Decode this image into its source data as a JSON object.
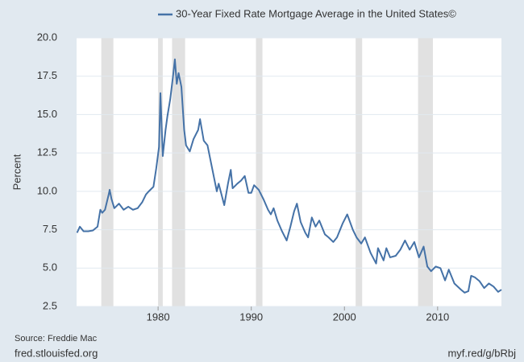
{
  "chart_data": {
    "type": "line",
    "title": "30-Year Fixed Rate Mortgage Average in the United States©",
    "y_label": "Percent",
    "source": "Source: Freddie Mac",
    "site": "fred.stlouisfed.org",
    "short_url": "myf.red/g/bRbj",
    "xlim": [
      1971.25,
      2016.85
    ],
    "xticks": [
      1980,
      1990,
      2000,
      2010
    ],
    "ylim": [
      2.5,
      20
    ],
    "yticks": [
      2.5,
      {
        "value": 5,
        "label": "5.0"
      },
      7.5,
      {
        "value": 10,
        "label": "10.0"
      },
      12.5,
      {
        "value": 15,
        "label": "15.0"
      },
      17.5,
      {
        "value": 20,
        "label": "20.0"
      }
    ],
    "grid": true,
    "recession_color": "#e1e1e1",
    "recessions": [
      [
        1973.9,
        1975.2
      ],
      [
        1980.0,
        1980.5
      ],
      [
        1981.5,
        1982.9
      ],
      [
        1990.5,
        1991.2
      ],
      [
        2001.2,
        2001.9
      ],
      [
        2007.9,
        2009.5
      ]
    ],
    "x": [
      1971.3,
      1971.6,
      1972.0,
      1972.5,
      1973.0,
      1973.5,
      1973.8,
      1974.0,
      1974.3,
      1974.7,
      1974.8,
      1975.0,
      1975.3,
      1975.8,
      1976.3,
      1976.8,
      1977.3,
      1977.8,
      1978.3,
      1978.7,
      1979.0,
      1979.5,
      1979.8,
      1980.1,
      1980.25,
      1980.5,
      1980.8,
      1981.0,
      1981.3,
      1981.6,
      1981.8,
      1982.0,
      1982.2,
      1982.5,
      1982.8,
      1983.0,
      1983.4,
      1983.8,
      1984.3,
      1984.5,
      1984.9,
      1985.3,
      1985.6,
      1986.0,
      1986.3,
      1986.5,
      1986.8,
      1987.1,
      1987.5,
      1987.8,
      1988.0,
      1988.5,
      1988.9,
      1989.3,
      1989.7,
      1990.0,
      1990.3,
      1990.8,
      1991.3,
      1991.8,
      1992.1,
      1992.4,
      1992.8,
      1993.3,
      1993.8,
      1994.2,
      1994.6,
      1994.9,
      1995.3,
      1995.8,
      1996.1,
      1996.5,
      1996.9,
      1997.3,
      1997.9,
      1998.3,
      1998.8,
      1999.2,
      1999.8,
      2000.3,
      2000.9,
      2001.3,
      2001.8,
      2002.2,
      2002.8,
      2003.4,
      2003.6,
      2004.2,
      2004.5,
      2004.9,
      2005.5,
      2006.0,
      2006.5,
      2007.0,
      2007.5,
      2008.0,
      2008.5,
      2008.9,
      2009.3,
      2009.8,
      2010.3,
      2010.8,
      2011.2,
      2011.8,
      2012.5,
      2012.9,
      2013.3,
      2013.6,
      2014.0,
      2014.5,
      2015.0,
      2015.5,
      2016.0,
      2016.5,
      2016.85
    ],
    "series": [
      {
        "name": "30-Year Fixed Rate Mortgage Average in the United States©",
        "color": "#4572a7",
        "values": [
          7.3,
          7.7,
          7.4,
          7.4,
          7.45,
          7.7,
          8.8,
          8.6,
          8.8,
          9.8,
          10.1,
          9.5,
          8.9,
          9.2,
          8.8,
          9.0,
          8.8,
          8.9,
          9.3,
          9.8,
          10.0,
          10.3,
          11.5,
          12.9,
          16.4,
          12.3,
          14.0,
          14.9,
          16.0,
          17.5,
          18.6,
          17.0,
          17.7,
          16.8,
          14.0,
          13.0,
          12.6,
          13.4,
          14.0,
          14.7,
          13.3,
          13.0,
          12.1,
          10.9,
          10.0,
          10.5,
          9.8,
          9.1,
          10.5,
          11.4,
          10.2,
          10.5,
          10.7,
          11.0,
          9.9,
          9.9,
          10.4,
          10.1,
          9.5,
          8.8,
          8.5,
          8.9,
          8.1,
          7.4,
          6.8,
          7.7,
          8.7,
          9.2,
          8.0,
          7.3,
          7.0,
          8.3,
          7.7,
          8.1,
          7.2,
          7.0,
          6.7,
          7.0,
          7.9,
          8.5,
          7.5,
          7.0,
          6.6,
          7.0,
          6.0,
          5.3,
          6.3,
          5.5,
          6.3,
          5.7,
          5.8,
          6.2,
          6.8,
          6.2,
          6.7,
          5.7,
          6.4,
          5.1,
          4.8,
          5.1,
          5.0,
          4.2,
          4.9,
          4.0,
          3.6,
          3.4,
          3.5,
          4.5,
          4.4,
          4.15,
          3.7,
          4.0,
          3.8,
          3.45,
          3.6
        ]
      }
    ]
  }
}
